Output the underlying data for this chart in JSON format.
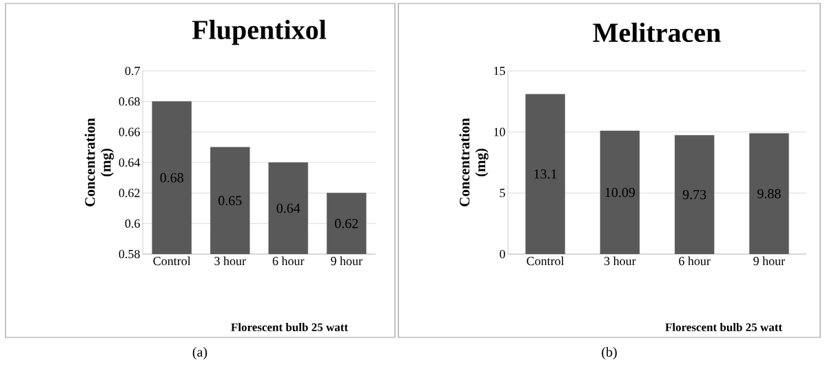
{
  "chart_data": [
    {
      "type": "bar",
      "title": "Flupentixol",
      "xlabel": "Florescent bulb 25 watt",
      "ylabel": "Concentration (mg)",
      "categories": [
        "Control",
        "3 hour",
        "6 hour",
        "9 hour"
      ],
      "values": [
        0.68,
        0.65,
        0.64,
        0.62
      ],
      "color": "#595959",
      "ylim": [
        0.58,
        0.7
      ],
      "yticks": [
        0.58,
        0.6,
        0.62,
        0.64,
        0.66,
        0.68,
        0.7
      ],
      "grid": "y",
      "data_labels": true,
      "annotations": [
        "(a)"
      ]
    },
    {
      "type": "bar",
      "title": "Melitracen",
      "xlabel": "Florescent bulb 25 watt",
      "ylabel": "Concentration (mg)",
      "categories": [
        "Control",
        "3 hour",
        "6 hour",
        "9 hour"
      ],
      "values": [
        13.1,
        10.09,
        9.73,
        9.88
      ],
      "color": "#595959",
      "ylim": [
        0,
        15
      ],
      "yticks": [
        0,
        5,
        10,
        15
      ],
      "grid": "y",
      "data_labels": true,
      "annotations": [
        "(b)"
      ]
    }
  ]
}
